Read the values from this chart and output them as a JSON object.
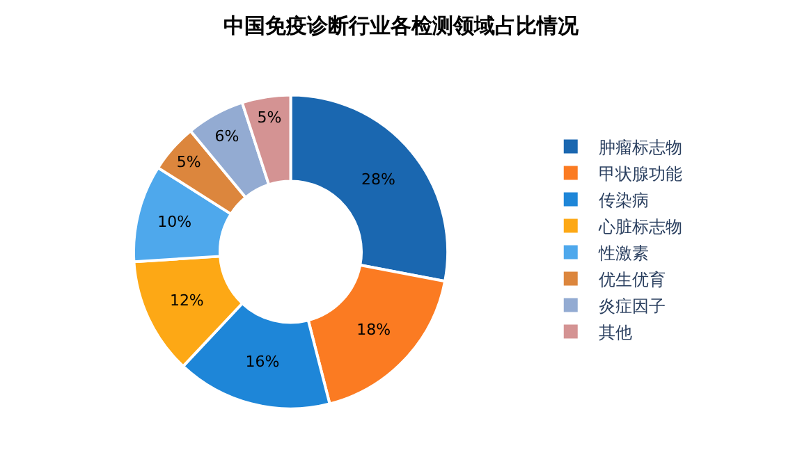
{
  "chart_data": {
    "type": "donut",
    "title": "中国免疫诊断行业各检测领域占比情况",
    "categories": [
      "肿瘤标志物",
      "甲状腺功能",
      "传染病",
      "心脏标志物",
      "性激素",
      "优生优育",
      "炎症因子",
      "其他"
    ],
    "values": [
      28,
      18,
      16,
      12,
      10,
      5,
      6,
      5
    ],
    "value_labels": [
      "28%",
      "18%",
      "16%",
      "12%",
      "10%",
      "5%",
      "6%",
      "5%"
    ],
    "colors": [
      "#1a67b0",
      "#fb7b22",
      "#1e86d8",
      "#fda815",
      "#4ea8ec",
      "#dc863d",
      "#93abd2",
      "#d49393"
    ],
    "legend": "right"
  }
}
